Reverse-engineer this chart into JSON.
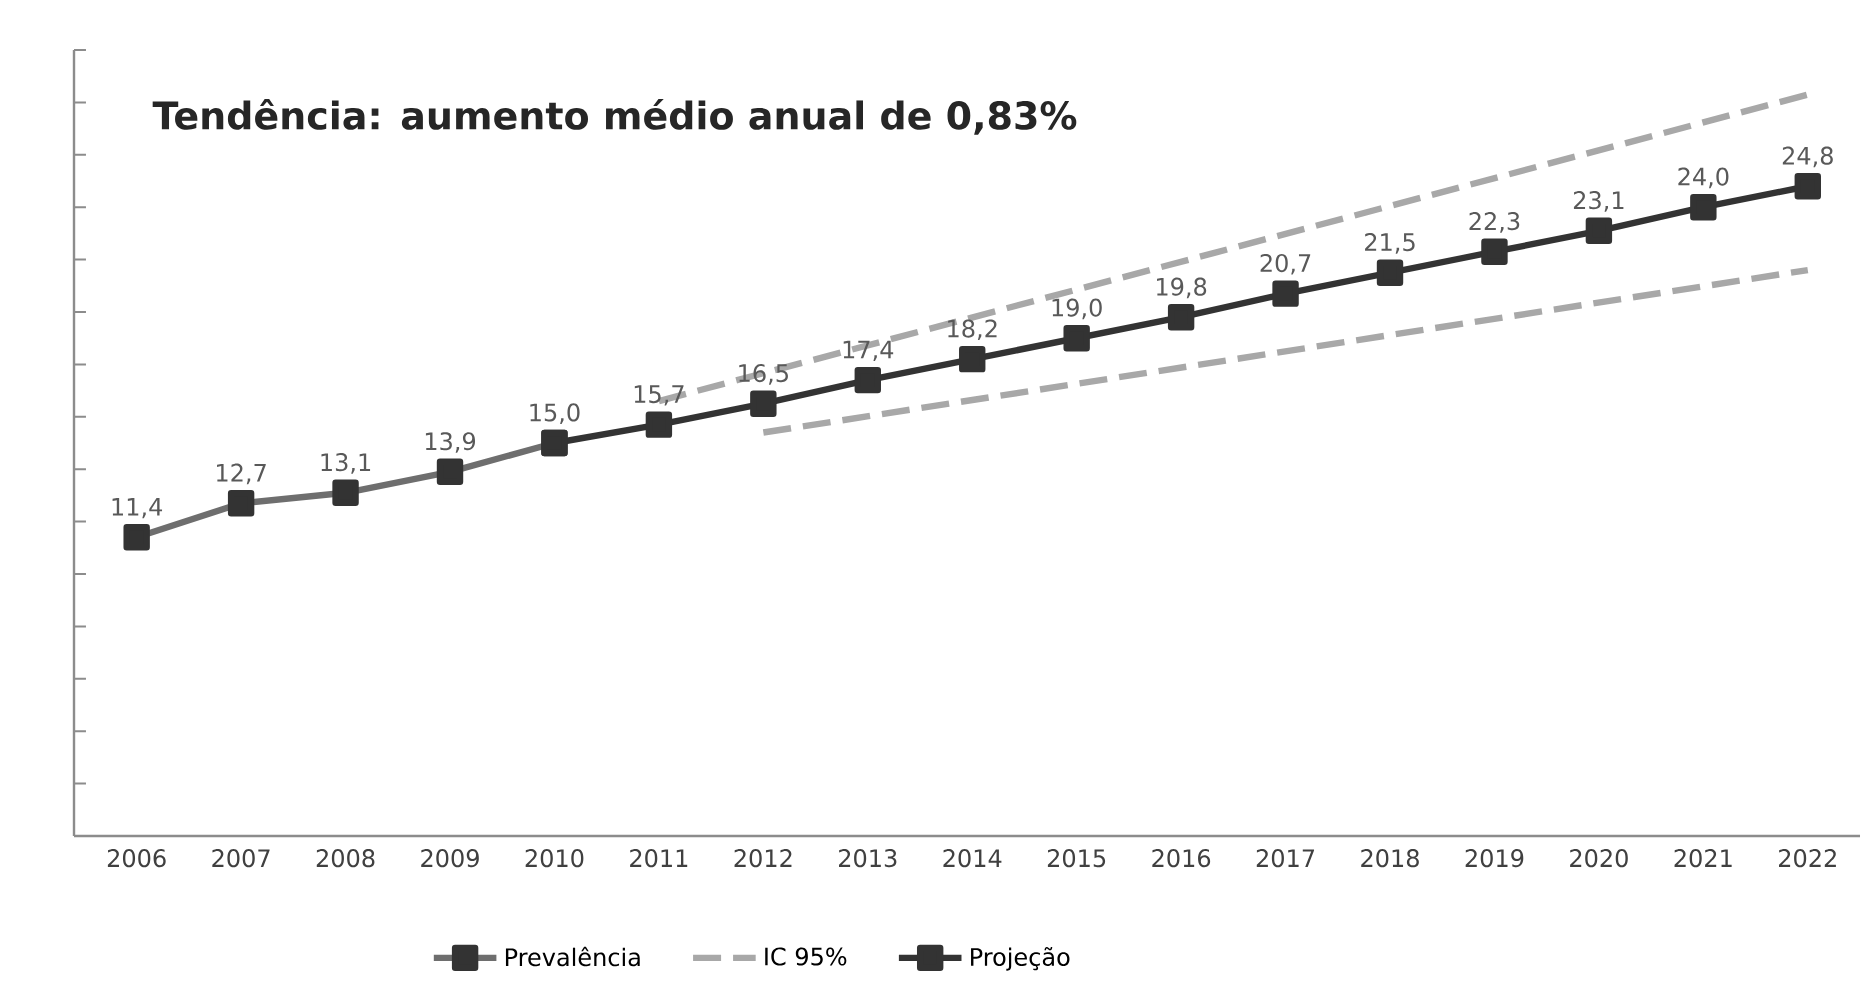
{
  "chart_data": {
    "type": "line",
    "title": "Tendência: aumento médio anual de 0,83%",
    "xlim": [
      2005.4,
      2022.5
    ],
    "xticks": [
      2006,
      2007,
      2008,
      2009,
      2010,
      2011,
      2012,
      2013,
      2014,
      2015,
      2016,
      2017,
      2018,
      2019,
      2020,
      2021,
      2022
    ],
    "ylim": [
      0,
      30
    ],
    "yticks": [
      {
        "value": 0,
        "label": null
      },
      {
        "value": 2,
        "label": null
      },
      {
        "value": 4,
        "label": null
      },
      {
        "value": 6,
        "label": null
      },
      {
        "value": 8,
        "label": null
      },
      {
        "value": 10,
        "label": null
      },
      {
        "value": 12,
        "label": null
      },
      {
        "value": 14,
        "label": null
      },
      {
        "value": 16,
        "label": null
      },
      {
        "value": 18,
        "label": null
      },
      {
        "value": 20,
        "label": null
      },
      {
        "value": 22,
        "label": null
      },
      {
        "value": 24,
        "label": null
      },
      {
        "value": 26,
        "label": null
      },
      {
        "value": 28,
        "label": null
      },
      {
        "value": 30,
        "label": null
      }
    ],
    "tick_labels": "x",
    "grid": false,
    "legend": "bottom",
    "marker": "square",
    "line_style": "solid",
    "series": [
      {
        "name": "Prevalência",
        "color": "#6e6e6e",
        "x": [
          2006,
          2007,
          2008,
          2009,
          2010
        ],
        "values": [
          11.4,
          12.7,
          13.1,
          13.9,
          15.0
        ],
        "value_labels": [
          "11,4",
          "12,7",
          "13,1",
          "13,9",
          "15,0"
        ]
      },
      {
        "name": "IC 95%",
        "color": "#a8a8a8",
        "x": [
          2011,
          2022
        ],
        "values": [
          16.6,
          28.3
        ],
        "marker": "none",
        "line_style": "dashed"
      },
      {
        "color": "#a8a8a8",
        "x": [
          2012,
          2022
        ],
        "values": [
          15.4,
          21.6
        ],
        "marker": "none",
        "line_style": "dashed"
      },
      {
        "name": "Projeção",
        "color": "#333333",
        "x": [
          2010,
          2011,
          2012,
          2013,
          2014,
          2015,
          2016,
          2017,
          2018,
          2019,
          2020,
          2021,
          2022
        ],
        "values": [
          15.0,
          15.7,
          16.5,
          17.4,
          18.2,
          19.0,
          19.8,
          20.7,
          21.5,
          22.3,
          23.1,
          24.0,
          24.8
        ],
        "value_labels": [
          null,
          "15,7",
          "16,5",
          "17,4",
          "18,2",
          "19,0",
          "19,8",
          "20,7",
          "21,5",
          "22,3",
          "23,1",
          "24,0",
          "24,8"
        ]
      }
    ]
  }
}
